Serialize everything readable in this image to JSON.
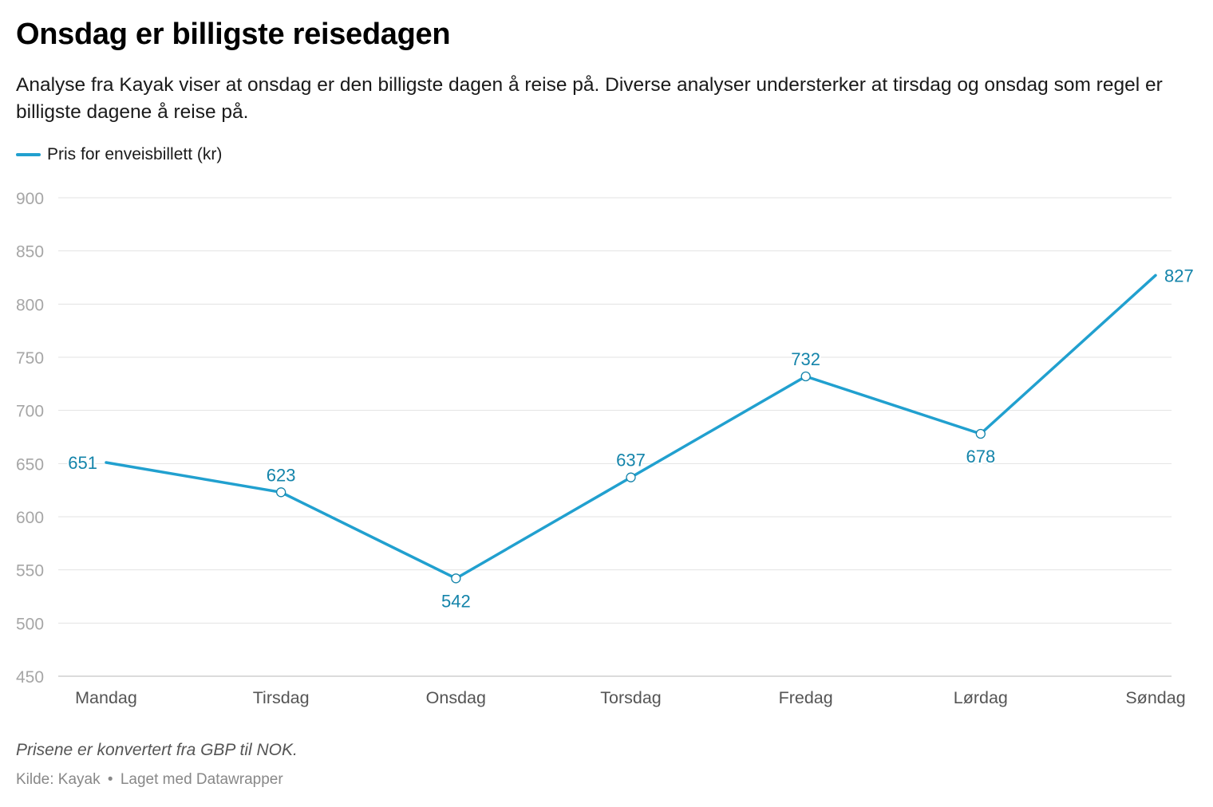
{
  "header": {
    "title": "Onsdag er billigste reisedagen",
    "subtitle": "Analyse fra Kayak viser at onsdag er den billigste dagen å reise på. Diverse analyser understerker at tirsdag og onsdag som regel er billigste dagene å reise på."
  },
  "legend": {
    "label": "Pris for enveisbillett (kr)"
  },
  "colors": {
    "line": "#21a0cf",
    "label": "#1484aa",
    "grid": "#e3e3e3",
    "axis_text": "#a6a6a6",
    "x_text": "#555555"
  },
  "chart_data": {
    "type": "line",
    "title": "Onsdag er billigste reisedagen",
    "xlabel": "",
    "ylabel": "",
    "categories": [
      "Mandag",
      "Tirsdag",
      "Onsdag",
      "Torsdag",
      "Fredag",
      "Lørdag",
      "Søndag"
    ],
    "series": [
      {
        "name": "Pris for enveisbillett (kr)",
        "values": [
          651,
          623,
          542,
          637,
          732,
          678,
          827
        ]
      }
    ],
    "yticks": [
      450,
      500,
      550,
      600,
      650,
      700,
      750,
      800,
      850,
      900
    ],
    "ylim": [
      450,
      900
    ],
    "grid": true,
    "legend": "top-left"
  },
  "footer": {
    "notes": "Prisene er konvertert fra GBP til NOK.",
    "source_prefix": "Kilde: Kayak",
    "separator": "•",
    "made_with": "Laget med Datawrapper"
  }
}
